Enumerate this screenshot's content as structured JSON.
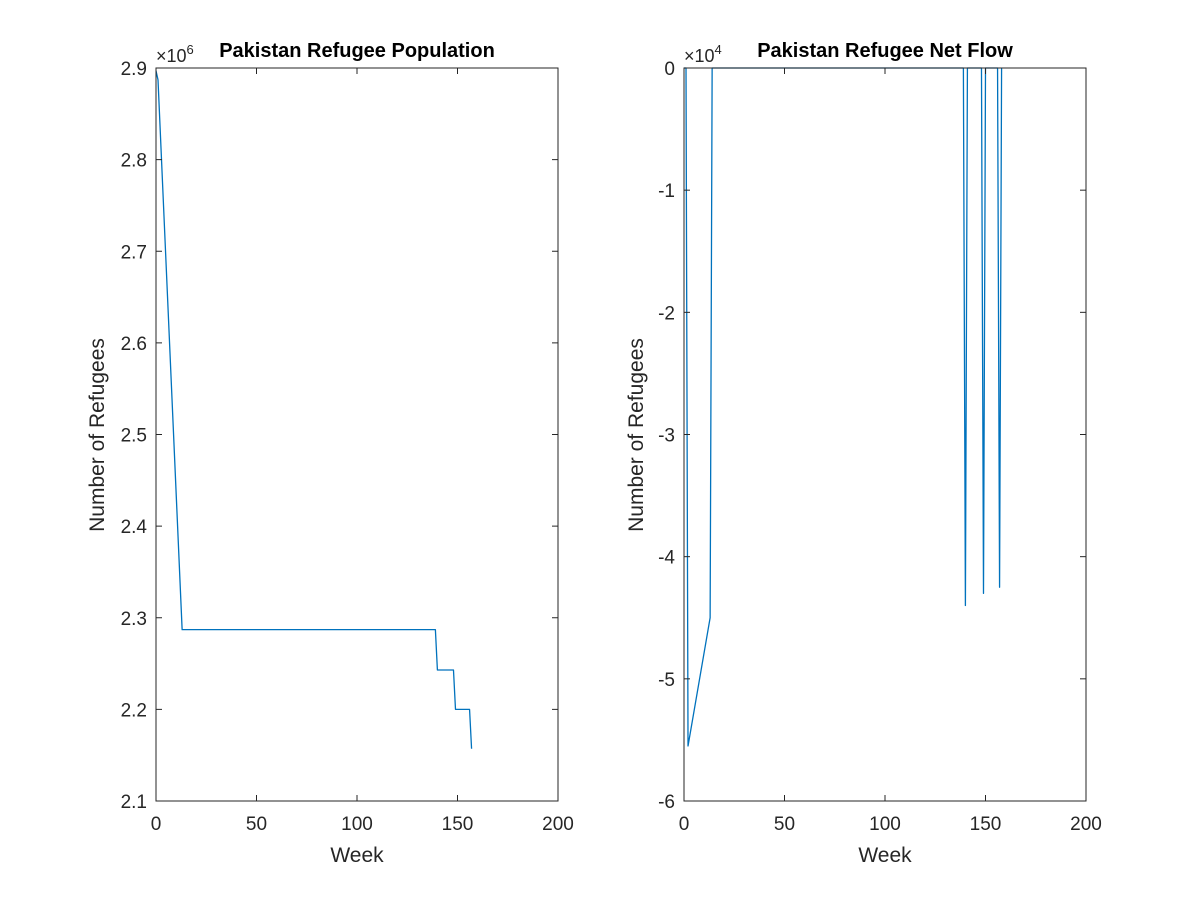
{
  "figure": {
    "background": "#ffffff",
    "axis_color": "#262626",
    "line_color": "#0072bd"
  },
  "chart_data": [
    {
      "type": "line",
      "title": "Pakistan Refugee Population",
      "xlabel": "Week",
      "ylabel": "Number of Refugees",
      "exponent_base": "×10",
      "exponent_power": "6",
      "xlim": [
        0,
        200
      ],
      "ylim": [
        2.1,
        2.9
      ],
      "xticks": [
        0,
        50,
        100,
        150,
        200
      ],
      "xtick_labels": [
        "0",
        "50",
        "100",
        "150",
        "200"
      ],
      "yticks": [
        2.1,
        2.2,
        2.3,
        2.4,
        2.5,
        2.6,
        2.7,
        2.8,
        2.9
      ],
      "ytick_labels": [
        "2.1",
        "2.2",
        "2.3",
        "2.4",
        "2.5",
        "2.6",
        "2.7",
        "2.8",
        "2.9"
      ],
      "grid": false,
      "series": [
        {
          "color": "#0072bd",
          "x": [
            0,
            1,
            13,
            139,
            140,
            148,
            149,
            156,
            157
          ],
          "y": [
            2.897,
            2.887,
            2.287,
            2.287,
            2.243,
            2.243,
            2.2,
            2.2,
            2.157
          ]
        }
      ]
    },
    {
      "type": "line",
      "title": "Pakistan Refugee Net Flow",
      "xlabel": "Week",
      "ylabel": "Number of Refugees",
      "exponent_base": "×10",
      "exponent_power": "4",
      "xlim": [
        0,
        200
      ],
      "ylim": [
        -6,
        0
      ],
      "xticks": [
        0,
        50,
        100,
        150,
        200
      ],
      "xtick_labels": [
        "0",
        "50",
        "100",
        "150",
        "200"
      ],
      "yticks": [
        -6,
        -5,
        -4,
        -3,
        -2,
        -1,
        0
      ],
      "ytick_labels": [
        "-6",
        "-5",
        "-4",
        "-3",
        "-2",
        "-1",
        "0"
      ],
      "grid": false,
      "series": [
        {
          "color": "#0072bd",
          "x": [
            0,
            1,
            2,
            13,
            14,
            139,
            140,
            141,
            148,
            149,
            150,
            156,
            157,
            158
          ],
          "y": [
            0,
            0,
            -5.55,
            -4.5,
            0,
            0,
            -4.4,
            0,
            0,
            -4.3,
            0,
            0,
            -4.25,
            0
          ]
        }
      ]
    }
  ]
}
